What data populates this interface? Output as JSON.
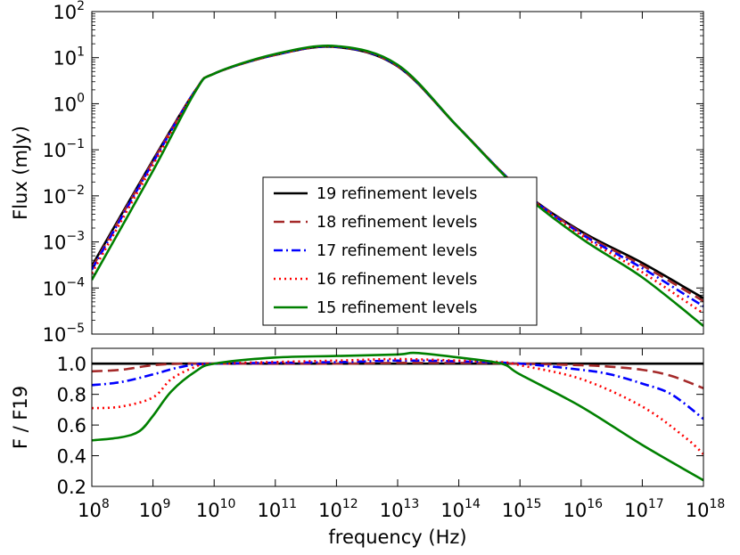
{
  "chart_data": [
    {
      "type": "line",
      "panel": "top",
      "xscale": "log",
      "yscale": "log",
      "xlim": [
        100000000.0,
        1e+18
      ],
      "ylim": [
        1e-05,
        100
      ],
      "xlabel": "",
      "ylabel": "Flux (mJy)",
      "y_ticks": [
        {
          "base": "10",
          "exp": "-5",
          "value": 1e-05
        },
        {
          "base": "10",
          "exp": "-4",
          "value": 0.0001
        },
        {
          "base": "10",
          "exp": "-3",
          "value": 0.001
        },
        {
          "base": "10",
          "exp": "-2",
          "value": 0.01
        },
        {
          "base": "10",
          "exp": "-1",
          "value": 0.1
        },
        {
          "base": "10",
          "exp": "0",
          "value": 1
        },
        {
          "base": "10",
          "exp": "1",
          "value": 10
        },
        {
          "base": "10",
          "exp": "2",
          "value": 100
        }
      ],
      "legend_position": "lower-center",
      "series": [
        {
          "name": "19 refinement levels",
          "color": "#000000",
          "style": "solid",
          "x": [
            100000000.0,
            1000000000.0,
            5000000000.0,
            10000000000.0,
            100000000000.0,
            1000000000000.0,
            10000000000000.0,
            100000000000000.0,
            1000000000000000.0,
            1e+16,
            1e+17,
            1e+18
          ],
          "y": [
            0.0003,
            0.06,
            2.0,
            4.5,
            11.5,
            17.0,
            6.5,
            0.3,
            0.014,
            0.0017,
            0.00035,
            6e-05
          ]
        },
        {
          "name": "18 refinement levels",
          "color": "#a52a2a",
          "style": "dashed",
          "x": [
            100000000.0,
            1000000000.0,
            5000000000.0,
            10000000000.0,
            100000000000.0,
            1000000000000.0,
            10000000000000.0,
            100000000000000.0,
            1000000000000000.0,
            1e+16,
            1e+17,
            1e+18
          ],
          "y": [
            0.00027,
            0.057,
            2.0,
            4.5,
            11.5,
            17.2,
            6.6,
            0.3,
            0.014,
            0.0016,
            0.00031,
            5.2e-05
          ]
        },
        {
          "name": "17 refinement levels",
          "color": "#0000ff",
          "style": "dashdot",
          "x": [
            100000000.0,
            1000000000.0,
            5000000000.0,
            10000000000.0,
            100000000000.0,
            1000000000000.0,
            10000000000000.0,
            100000000000000.0,
            1000000000000000.0,
            1e+16,
            1e+17,
            1e+18
          ],
          "y": [
            0.00025,
            0.053,
            2.0,
            4.5,
            11.6,
            17.3,
            6.7,
            0.3,
            0.014,
            0.0015,
            0.00027,
            4e-05
          ]
        },
        {
          "name": "16 refinement levels",
          "color": "#ff0000",
          "style": "dotted",
          "x": [
            100000000.0,
            1000000000.0,
            5000000000.0,
            10000000000.0,
            100000000000.0,
            1000000000000.0,
            10000000000000.0,
            100000000000000.0,
            1000000000000000.0,
            1e+16,
            1e+17,
            1e+18
          ],
          "y": [
            0.00021,
            0.047,
            2.0,
            4.5,
            11.7,
            17.5,
            6.8,
            0.3,
            0.0138,
            0.0014,
            0.00022,
            2.8e-05
          ]
        },
        {
          "name": "15 refinement levels",
          "color": "#008000",
          "style": "solid",
          "x": [
            100000000.0,
            1000000000.0,
            5000000000.0,
            10000000000.0,
            100000000000.0,
            1000000000000.0,
            10000000000000.0,
            100000000000000.0,
            1000000000000000.0,
            1e+16,
            1e+17,
            1e+18
          ],
          "y": [
            0.00015,
            0.035,
            1.9,
            4.5,
            12.0,
            17.8,
            7.0,
            0.3,
            0.013,
            0.0012,
            0.00017,
            1.5e-05
          ]
        }
      ]
    },
    {
      "type": "line",
      "panel": "bottom",
      "xscale": "log",
      "yscale": "linear",
      "xlim": [
        100000000.0,
        1e+18
      ],
      "ylim": [
        0.2,
        1.1
      ],
      "xlabel": "frequency (Hz)",
      "ylabel": "F / F19",
      "x_ticks": [
        {
          "base": "10",
          "exp": "8",
          "value": 100000000.0
        },
        {
          "base": "10",
          "exp": "9",
          "value": 1000000000.0
        },
        {
          "base": "10",
          "exp": "10",
          "value": 10000000000.0
        },
        {
          "base": "10",
          "exp": "11",
          "value": 100000000000.0
        },
        {
          "base": "10",
          "exp": "12",
          "value": 1000000000000.0
        },
        {
          "base": "10",
          "exp": "13",
          "value": 10000000000000.0
        },
        {
          "base": "10",
          "exp": "14",
          "value": 100000000000000.0
        },
        {
          "base": "10",
          "exp": "15",
          "value": 1000000000000000.0
        },
        {
          "base": "10",
          "exp": "16",
          "value": 1e+16
        },
        {
          "base": "10",
          "exp": "17",
          "value": 1e+17
        },
        {
          "base": "10",
          "exp": "18",
          "value": 1e+18
        }
      ],
      "y_ticks": [
        {
          "label": "0.2",
          "value": 0.2
        },
        {
          "label": "0.4",
          "value": 0.4
        },
        {
          "label": "0.6",
          "value": 0.6
        },
        {
          "label": "0.8",
          "value": 0.8
        },
        {
          "label": "1.0",
          "value": 1.0
        }
      ],
      "series": [
        {
          "name": "19 refinement levels",
          "color": "#000000",
          "style": "solid",
          "x": [
            100000000.0,
            1e+18
          ],
          "y": [
            1.0,
            1.0
          ]
        },
        {
          "name": "18 refinement levels",
          "color": "#a52a2a",
          "style": "dashed",
          "x": [
            100000000.0,
            300000000.0,
            1000000000.0,
            3000000000.0,
            10000000000.0,
            1000000000000.0,
            10000000000000.0,
            100000000000000.0,
            1000000000000000.0,
            1e+16,
            3e+16,
            1e+17,
            3e+17,
            1e+18
          ],
          "y": [
            0.95,
            0.96,
            0.99,
            1.0,
            1.0,
            1.0,
            1.005,
            1.005,
            1.0,
            0.99,
            0.98,
            0.96,
            0.92,
            0.84
          ]
        },
        {
          "name": "17 refinement levels",
          "color": "#0000ff",
          "style": "dashdot",
          "x": [
            100000000.0,
            300000000.0,
            1000000000.0,
            3000000000.0,
            10000000000.0,
            1000000000000.0,
            10000000000000.0,
            100000000000000.0,
            1000000000000000.0,
            1e+16,
            3e+16,
            1e+17,
            3e+17,
            1e+18
          ],
          "y": [
            0.86,
            0.88,
            0.93,
            0.98,
            1.0,
            1.01,
            1.02,
            1.015,
            1.0,
            0.96,
            0.93,
            0.87,
            0.8,
            0.64
          ]
        },
        {
          "name": "16 refinement levels",
          "color": "#ff0000",
          "style": "dotted",
          "x": [
            100000000.0,
            300000000.0,
            1000000000.0,
            2000000000.0,
            5000000000.0,
            10000000000.0,
            1000000000000.0,
            10000000000000.0,
            100000000000000.0,
            500000000000000.0,
            1000000000000000.0,
            1e+16,
            1e+17,
            5e+17,
            1e+18
          ],
          "y": [
            0.71,
            0.72,
            0.78,
            0.9,
            0.98,
            1.0,
            1.02,
            1.03,
            1.02,
            1.01,
            0.99,
            0.9,
            0.72,
            0.52,
            0.41
          ]
        },
        {
          "name": "15 refinement levels",
          "color": "#008000",
          "style": "solid",
          "x": [
            100000000.0,
            300000000.0,
            600000000.0,
            1000000000.0,
            2000000000.0,
            5000000000.0,
            10000000000.0,
            100000000000.0,
            1000000000000.0,
            10000000000000.0,
            20000000000000.0,
            100000000000000.0,
            500000000000000.0,
            1000000000000000.0,
            1e+16,
            1e+17,
            1e+18
          ],
          "y": [
            0.5,
            0.52,
            0.56,
            0.66,
            0.82,
            0.95,
            1.0,
            1.04,
            1.05,
            1.06,
            1.07,
            1.04,
            1.0,
            0.93,
            0.72,
            0.47,
            0.24
          ]
        }
      ]
    }
  ]
}
